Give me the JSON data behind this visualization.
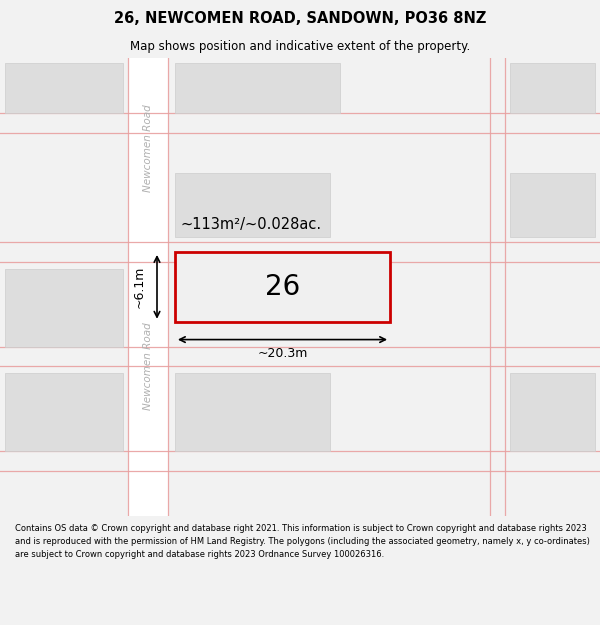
{
  "title": "26, NEWCOMEN ROAD, SANDOWN, PO36 8NZ",
  "subtitle": "Map shows position and indicative extent of the property.",
  "footer_text": "Contains OS data © Crown copyright and database right 2021. This information is subject to Crown copyright and database rights 2023 and is reproduced with the permission of HM Land Registry. The polygons (including the associated geometry, namely x, y co-ordinates) are subject to Crown copyright and database rights 2023 Ordnance Survey 100026316.",
  "bg_color": "#f2f2f2",
  "map_bg": "#ffffff",
  "road_line_color": "#e8a0a0",
  "building_color": "#dddddd",
  "building_edge": "#cccccc",
  "highlight_color": "#cc0000",
  "highlight_bg": "#f0f0f0",
  "road_label_color": "#b0b0b0",
  "road_label": "Newcomen Road",
  "property_number": "26",
  "area_label": "~113m²/~0.028ac.",
  "width_label": "~20.3m",
  "height_label": "~6.1m",
  "title_fontsize": 10.5,
  "subtitle_fontsize": 8.5,
  "footer_fontsize": 6.0
}
